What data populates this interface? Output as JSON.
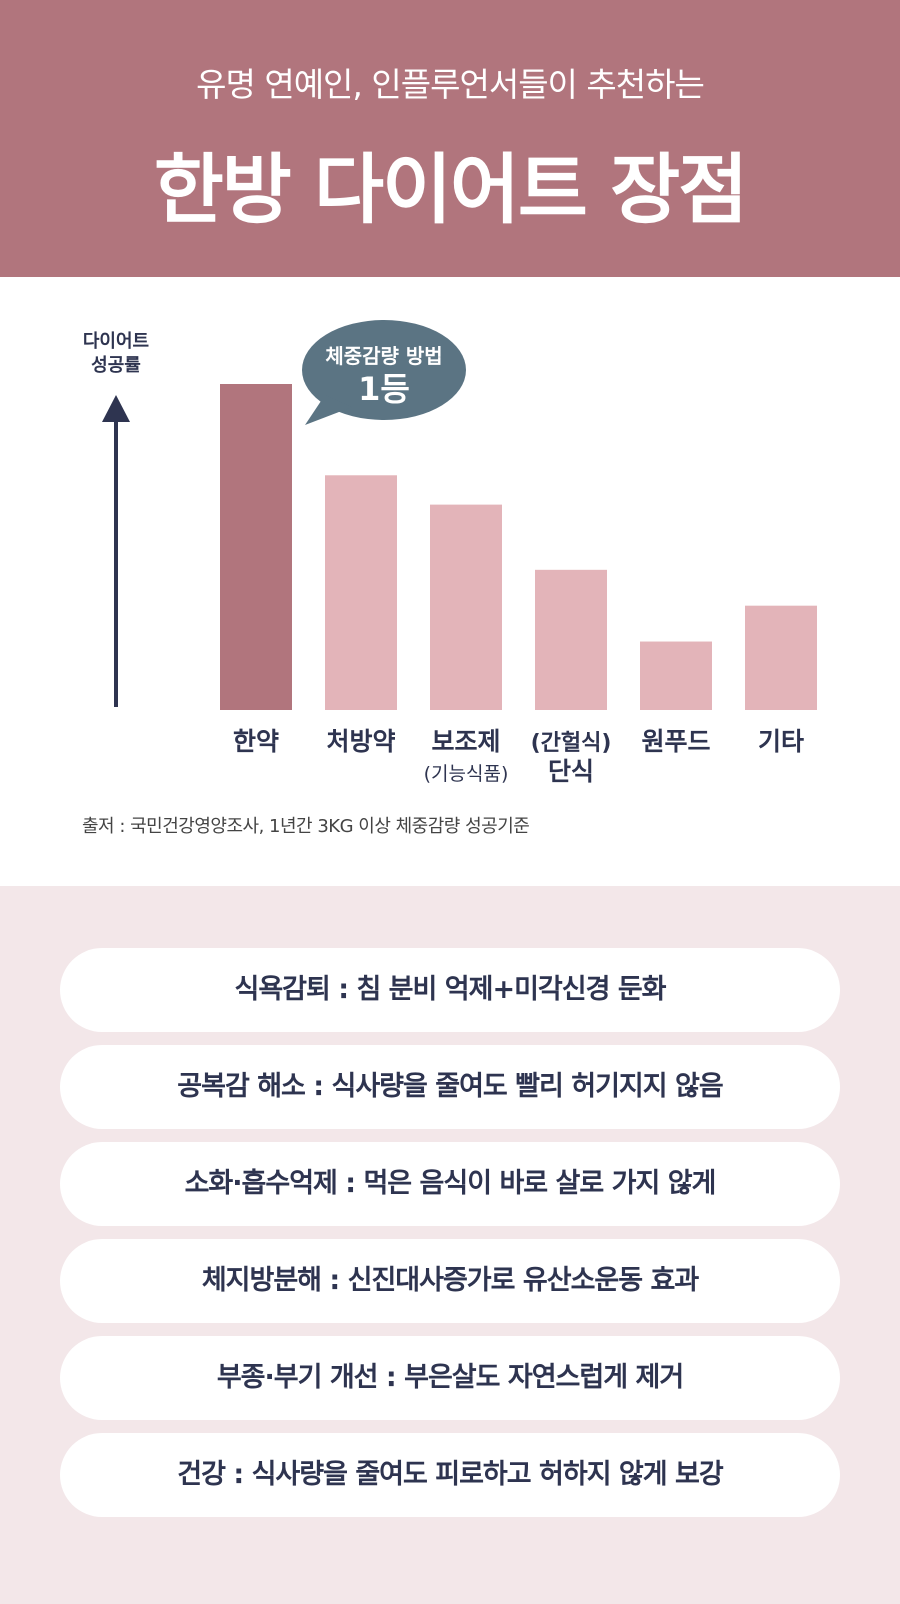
{
  "header": {
    "subtitle": "유명 연예인, 인플루언서들이 추천하는",
    "title": "한방 다이어트 장점"
  },
  "chart_data": {
    "type": "bar",
    "ylabel_lines": [
      "다이어트",
      "성공률"
    ],
    "categories": [
      [
        "한약"
      ],
      [
        "처방약"
      ],
      [
        "보조제",
        "(기능식품)"
      ],
      [
        "(간헐식)",
        "단식"
      ],
      [
        "원푸드"
      ],
      [
        "기타"
      ]
    ],
    "values": [
      100,
      72,
      63,
      43,
      21,
      32
    ],
    "ylim": [
      0,
      100
    ],
    "colors": {
      "highlight": "#b1757d",
      "normal": "#e3b4b9",
      "axis": "#2e3450"
    },
    "callout": {
      "lines": [
        "체중감량 방법",
        "1등"
      ],
      "color": "#5b7483"
    },
    "source": "출저 : 국민건강영양조사, 1년간 3KG 이상 체중감량 성공기준"
  },
  "benefits": [
    "식욕감퇴 : 침 분비 억제+미각신경 둔화",
    "공복감 해소 : 식사량을 줄여도 빨리 허기지지 않음",
    "소화·흡수억제 : 먹은 음식이 바로 살로 가지 않게",
    "체지방분해 : 신진대사증가로 유산소운동 효과",
    "부종·부기 개선 : 부은살도 자연스럽게 제거",
    "건강 : 식사량을 줄여도 피로하고 허하지 않게 보강"
  ]
}
